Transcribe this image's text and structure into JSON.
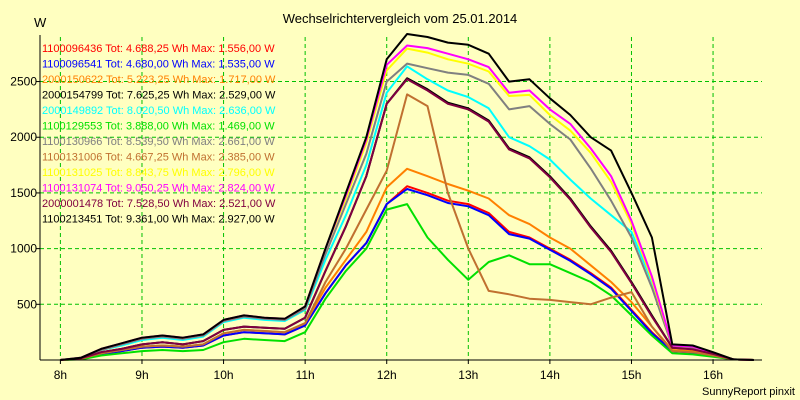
{
  "chart_data": {
    "type": "line",
    "title": "Wechselrichtervergleich vom 25.01.2014",
    "ylabel": "W",
    "footer": "SunnyReport pinxit",
    "xlim": [
      7.75,
      16.6
    ],
    "ylim": [
      0,
      2900
    ],
    "xticks": [
      8,
      9,
      10,
      11,
      12,
      13,
      14,
      15,
      16
    ],
    "xtick_labels": [
      "8h",
      "9h",
      "10h",
      "11h",
      "12h",
      "13h",
      "14h",
      "15h",
      "16h"
    ],
    "yticks": [
      500,
      1000,
      1500,
      2000,
      2500
    ],
    "ytick_labels": [
      "500",
      "1000",
      "1500",
      "2000",
      "2500"
    ],
    "grid": true,
    "legend_position": "top-left",
    "x": [
      8.0,
      8.25,
      8.5,
      8.75,
      9.0,
      9.25,
      9.5,
      9.75,
      10.0,
      10.25,
      10.5,
      10.75,
      11.0,
      11.25,
      11.5,
      11.75,
      12.0,
      12.25,
      12.5,
      12.75,
      13.0,
      13.25,
      13.5,
      13.75,
      14.0,
      14.25,
      14.5,
      14.75,
      15.0,
      15.25,
      15.5,
      15.75,
      16.0,
      16.25,
      16.5
    ],
    "series": [
      {
        "name": "1100096436 Tot: 4.688,25 Wh Max: 1.556,00 W",
        "color": "#ff0000",
        "values": [
          0,
          10,
          50,
          80,
          110,
          120,
          110,
          130,
          220,
          250,
          240,
          230,
          310,
          600,
          850,
          1050,
          1400,
          1560,
          1500,
          1430,
          1400,
          1320,
          1150,
          1100,
          1000,
          900,
          780,
          650,
          450,
          250,
          80,
          70,
          40,
          5,
          0
        ]
      },
      {
        "name": "1100096541 Tot: 4.680,00 Wh Max: 1.535,00 W",
        "color": "#0000ff",
        "values": [
          0,
          10,
          50,
          80,
          110,
          120,
          110,
          130,
          220,
          250,
          240,
          230,
          310,
          600,
          850,
          1050,
          1400,
          1535,
          1480,
          1410,
          1380,
          1300,
          1130,
          1090,
          990,
          890,
          770,
          640,
          440,
          240,
          80,
          65,
          40,
          5,
          0
        ]
      },
      {
        "name": "2000150622 Tot: 5.223,25 Wh Max: 1.717,00 W",
        "color": "#ff8000",
        "values": [
          0,
          10,
          60,
          90,
          120,
          130,
          120,
          140,
          240,
          270,
          260,
          250,
          330,
          650,
          900,
          1150,
          1550,
          1717,
          1650,
          1580,
          1520,
          1450,
          1300,
          1220,
          1100,
          1000,
          850,
          700,
          520,
          300,
          90,
          80,
          50,
          5,
          0
        ]
      },
      {
        "name": "2000154799 Tot: 7.625,25 Wh Max: 2.529,00 W",
        "color": "#000000",
        "values": [
          0,
          15,
          70,
          100,
          140,
          160,
          140,
          170,
          270,
          300,
          290,
          280,
          380,
          800,
          1200,
          1650,
          2300,
          2529,
          2430,
          2310,
          2260,
          2150,
          1900,
          1820,
          1650,
          1450,
          1200,
          980,
          700,
          400,
          110,
          100,
          55,
          5,
          0
        ]
      },
      {
        "name": "2000149892 Tot: 8.020,50 Wh Max: 2.636,00 W",
        "color": "#00ffff",
        "values": [
          0,
          20,
          90,
          130,
          180,
          200,
          180,
          210,
          340,
          380,
          360,
          350,
          450,
          900,
          1300,
          1750,
          2400,
          2636,
          2520,
          2420,
          2360,
          2260,
          2000,
          1920,
          1800,
          1620,
          1450,
          1300,
          1150,
          700,
          120,
          110,
          60,
          5,
          0
        ]
      },
      {
        "name": "1100129553 Tot: 3.888,00 Wh Max: 1.469,00 W",
        "color": "#00e000",
        "values": [
          0,
          5,
          40,
          60,
          80,
          90,
          80,
          90,
          160,
          190,
          180,
          170,
          250,
          550,
          800,
          1000,
          1350,
          1400,
          1100,
          900,
          720,
          880,
          940,
          860,
          860,
          780,
          700,
          580,
          400,
          220,
          60,
          50,
          30,
          5,
          0
        ]
      },
      {
        "name": "1100130966 Tot: 8.539,50 Wh Max: 2.661,00 W",
        "color": "#808080",
        "values": [
          0,
          20,
          90,
          140,
          190,
          210,
          190,
          220,
          350,
          390,
          370,
          360,
          460,
          950,
          1400,
          1850,
          2500,
          2661,
          2620,
          2580,
          2560,
          2480,
          2250,
          2280,
          2120,
          1980,
          1720,
          1430,
          1100,
          650,
          120,
          110,
          60,
          5,
          0
        ]
      },
      {
        "name": "1100131006 Tot: 4.667,25 Wh Max: 2.385,00 W",
        "color": "#c07030",
        "values": [
          0,
          10,
          60,
          90,
          120,
          130,
          120,
          140,
          240,
          270,
          260,
          250,
          330,
          700,
          1000,
          1350,
          1700,
          2385,
          2280,
          1500,
          1000,
          620,
          590,
          550,
          540,
          520,
          500,
          560,
          610,
          300,
          80,
          70,
          40,
          5,
          0
        ]
      },
      {
        "name": "1100131025 Tot: 8.843,75 Wh Max: 2.796,00 W",
        "color": "#ffff00",
        "values": [
          0,
          20,
          100,
          150,
          200,
          220,
          200,
          230,
          360,
          400,
          380,
          370,
          480,
          1000,
          1450,
          1950,
          2600,
          2796,
          2760,
          2700,
          2660,
          2590,
          2370,
          2380,
          2200,
          2060,
          1860,
          1600,
          1220,
          720,
          130,
          120,
          65,
          5,
          0
        ]
      },
      {
        "name": "1100131074 Tot: 9.050,25 Wh Max: 2.824,00 W",
        "color": "#ff00ff",
        "values": [
          0,
          20,
          100,
          150,
          200,
          220,
          200,
          230,
          360,
          400,
          380,
          370,
          480,
          1000,
          1480,
          1980,
          2650,
          2824,
          2800,
          2750,
          2700,
          2630,
          2400,
          2420,
          2250,
          2120,
          1900,
          1650,
          1250,
          750,
          130,
          120,
          65,
          5,
          0
        ]
      },
      {
        "name": "2000001478 Tot: 7.528,50 Wh Max: 2.521,00 W",
        "color": "#800040",
        "values": [
          0,
          15,
          70,
          100,
          140,
          160,
          140,
          170,
          270,
          300,
          290,
          280,
          380,
          800,
          1200,
          1650,
          2300,
          2521,
          2420,
          2300,
          2250,
          2140,
          1890,
          1810,
          1640,
          1440,
          1190,
          970,
          690,
          390,
          110,
          95,
          55,
          5,
          0
        ]
      },
      {
        "name": "1100213451 Tot: 9.361,00 Wh Max: 2.927,00 W",
        "color": "#000000",
        "values": [
          0,
          20,
          100,
          150,
          200,
          220,
          200,
          230,
          360,
          400,
          380,
          370,
          480,
          1000,
          1500,
          2000,
          2700,
          2927,
          2900,
          2850,
          2830,
          2750,
          2500,
          2520,
          2350,
          2200,
          2000,
          1880,
          1500,
          1100,
          140,
          130,
          70,
          5,
          0
        ]
      }
    ]
  }
}
